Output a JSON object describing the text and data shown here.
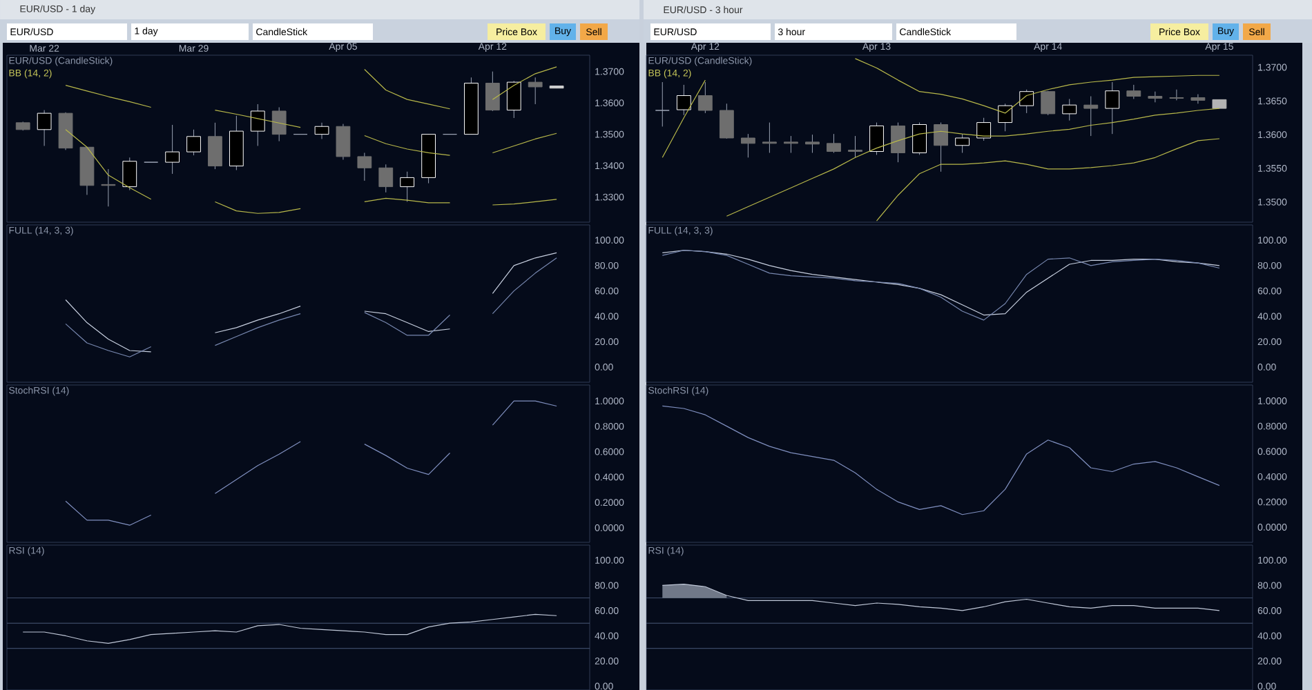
{
  "chart_data": [
    {
      "type": "candlestick",
      "title": "EUR/USD (CandleStick)",
      "subtitle": "BB (14, 2)",
      "annotations": [
        "EUR/USD - 1 day",
        "EUR/USD",
        "1 day",
        "CandleStick",
        "Price Box",
        "Buy",
        "Sell"
      ],
      "categories": [
        null,
        "Mar 22",
        null,
        null,
        null,
        null,
        null,
        null,
        "Mar 29",
        null,
        null,
        null,
        null,
        null,
        null,
        "Apr 05",
        null,
        null,
        null,
        null,
        null,
        null,
        "Apr 12",
        null,
        null,
        null
      ],
      "ohlc": [
        [
          1.3537,
          1.354,
          1.3512,
          1.3515
        ],
        [
          1.3515,
          1.3577,
          1.3463,
          1.3567
        ],
        [
          1.3567,
          1.357,
          1.345,
          1.3456
        ],
        [
          1.3459,
          1.346,
          1.3307,
          1.3337
        ],
        [
          1.334,
          1.3389,
          1.327,
          1.3337
        ],
        [
          1.3333,
          1.3426,
          1.3322,
          1.3414
        ],
        [
          1.3411,
          1.3411,
          1.3411,
          1.3411
        ],
        [
          1.3411,
          1.353,
          1.3374,
          1.3444
        ],
        [
          1.3444,
          1.3515,
          1.3433,
          1.3493
        ],
        [
          1.3493,
          1.3537,
          1.3389,
          1.3399
        ],
        [
          1.3399,
          1.3559,
          1.3386,
          1.351
        ],
        [
          1.351,
          1.3596,
          1.3463,
          1.3574
        ],
        [
          1.3574,
          1.3586,
          1.3478,
          1.35
        ],
        [
          1.35,
          1.35,
          1.35,
          1.35
        ],
        [
          1.35,
          1.3537,
          1.3485,
          1.3525
        ],
        [
          1.3525,
          1.3533,
          1.3419,
          1.3429
        ],
        [
          1.3429,
          1.3441,
          1.3352,
          1.3393
        ],
        [
          1.3393,
          1.3404,
          1.3315,
          1.3333
        ],
        [
          1.3333,
          1.3381,
          1.3285,
          1.3362
        ],
        [
          1.3362,
          1.35,
          1.3344,
          1.35
        ],
        [
          1.35,
          1.35,
          1.35,
          1.35
        ],
        [
          1.35,
          1.3681,
          1.35,
          1.3663
        ],
        [
          1.3663,
          1.37,
          1.3574,
          1.3577
        ],
        [
          1.3577,
          1.367,
          1.3552,
          1.3666
        ],
        [
          1.3666,
          1.3681,
          1.3596,
          1.3651
        ],
        [
          1.3654,
          1.3654,
          1.3647,
          1.3647
        ]
      ],
      "colors": [
        "#6e6e6e",
        "#000000",
        "#6e6e6e",
        "#6e6e6e",
        "#6e6e6e",
        "#000000",
        "#a0a8b8",
        "#000000",
        "#000000",
        "#6e6e6e",
        "#000000",
        "#000000",
        "#6e6e6e",
        "#a0a8b8",
        "#000000",
        "#6e6e6e",
        "#6e6e6e",
        "#6e6e6e",
        "#000000",
        "#000000",
        "#a0a8b8",
        "#000000",
        "#6e6e6e",
        "#000000",
        "#6e6e6e",
        "#d0d0d0"
      ],
      "series": [
        {
          "type": "line",
          "color": "#b8b84a",
          "values": [
            null,
            null,
            1.3656,
            1.3638,
            1.362,
            1.3604,
            1.3586,
            null,
            null,
            null,
            null,
            null,
            null,
            null,
            null,
            null,
            1.3707,
            1.3641,
            1.3611,
            1.3596,
            1.3581,
            null,
            1.3611,
            1.3656,
            1.3693,
            1.3715
          ]
        },
        {
          "type": "line",
          "color": "#b8b84a",
          "values": [
            null,
            null,
            1.3515,
            1.3459,
            1.337,
            1.333,
            1.3293,
            null,
            null,
            1.3577,
            1.3564,
            1.355,
            1.3536,
            1.3522,
            null,
            null,
            1.3496,
            1.347,
            1.3453,
            1.3441,
            1.3433,
            null,
            1.3441,
            1.3463,
            1.3485,
            1.3503
          ]
        },
        {
          "type": "line",
          "color": "#b8b84a",
          "values": [
            null,
            null,
            null,
            null,
            null,
            null,
            null,
            null,
            null,
            1.3285,
            1.3256,
            1.3248,
            1.3251,
            1.3263,
            null,
            null,
            1.3285,
            1.3296,
            1.329,
            1.3282,
            1.3282,
            null,
            1.3275,
            1.3278,
            1.3285,
            1.3293
          ]
        }
      ],
      "ylim": [
        1.322,
        1.3752
      ],
      "yticks": [
        {
          "value": 1.33,
          "label": "1.3300"
        },
        {
          "value": 1.34,
          "label": "1.3400"
        },
        {
          "value": 1.35,
          "label": "1.3500"
        },
        {
          "value": 1.36,
          "label": "1.3600"
        },
        {
          "value": 1.37,
          "label": "1.3700"
        }
      ]
    },
    {
      "type": "line",
      "title": "FULL (14, 3, 3)",
      "tick_labels": "y",
      "categories": [
        null,
        null,
        null,
        null,
        null,
        null,
        null,
        null,
        null,
        null,
        null,
        null,
        null,
        null,
        null,
        null,
        null,
        null,
        null,
        null,
        null,
        null,
        null,
        null,
        null,
        null
      ],
      "series": [
        {
          "color": "#c8d0e0",
          "values": [
            null,
            null,
            53,
            35,
            22,
            13,
            12,
            null,
            null,
            27,
            31,
            37,
            42,
            48,
            null,
            null,
            44,
            42,
            35,
            28,
            30,
            null,
            58,
            80,
            86,
            90
          ]
        },
        {
          "color": "#7888b0",
          "values": [
            null,
            null,
            34,
            19,
            13,
            8,
            16,
            null,
            null,
            17,
            24,
            31,
            37,
            42,
            null,
            null,
            43,
            35,
            25,
            25,
            41,
            null,
            42,
            60,
            74,
            86
          ]
        }
      ],
      "ylim": [
        -12,
        112
      ],
      "yticks": [
        {
          "value": 0,
          "label": "0.00"
        },
        {
          "value": 20,
          "label": "20.00"
        },
        {
          "value": 40,
          "label": "40.00"
        },
        {
          "value": 60,
          "label": "60.00"
        },
        {
          "value": 80,
          "label": "80.00"
        },
        {
          "value": 100,
          "label": "100.00"
        }
      ]
    },
    {
      "type": "line",
      "title": "StochRSI (14)",
      "tick_labels": "y",
      "categories": [
        null,
        null,
        null,
        null,
        null,
        null,
        null,
        null,
        null,
        null,
        null,
        null,
        null,
        null,
        null,
        null,
        null,
        null,
        null,
        null,
        null,
        null,
        null,
        null,
        null,
        null
      ],
      "series": [
        {
          "color": "#8090c0",
          "values": [
            null,
            null,
            0.21,
            0.06,
            0.06,
            0.02,
            0.1,
            null,
            null,
            0.27,
            0.38,
            0.49,
            0.58,
            0.68,
            null,
            null,
            0.66,
            0.57,
            0.47,
            0.42,
            0.59,
            null,
            0.81,
            1.0,
            1.0,
            0.96
          ]
        }
      ],
      "ylim": [
        -0.115,
        1.126
      ],
      "yticks": [
        {
          "value": 0,
          "label": "0.0000"
        },
        {
          "value": 0.2,
          "label": "0.2000"
        },
        {
          "value": 0.4,
          "label": "0.4000"
        },
        {
          "value": 0.6,
          "label": "0.6000"
        },
        {
          "value": 0.8,
          "label": "0.8000"
        },
        {
          "value": 1,
          "label": "1.0000"
        }
      ]
    },
    {
      "type": "line",
      "title": "RSI (14)",
      "tick_labels": "y",
      "categories": [
        null,
        null,
        null,
        null,
        null,
        null,
        null,
        null,
        null,
        null,
        null,
        null,
        null,
        null,
        null,
        null,
        null,
        null,
        null,
        null,
        null,
        null,
        null,
        null,
        null,
        null
      ],
      "series": [
        {
          "color": "#c0c8d8",
          "values": [
            43,
            43,
            40,
            36,
            34,
            37,
            41,
            42,
            43,
            44,
            43,
            48,
            49,
            46,
            45,
            44,
            43,
            41,
            41,
            47,
            50,
            51,
            53,
            55,
            57,
            56
          ]
        }
      ],
      "ref_lines": [
        {
          "axis": "y",
          "value": 30,
          "color": "#4a5a7a"
        },
        {
          "axis": "y",
          "value": 50,
          "color": "#4a5a7a"
        },
        {
          "axis": "y",
          "value": 70,
          "color": "#4a5a7a"
        }
      ],
      "ylim": [
        -3,
        112
      ],
      "yticks": [
        {
          "value": 0,
          "label": "0.00"
        },
        {
          "value": 20,
          "label": "20.00"
        },
        {
          "value": 40,
          "label": "40.00"
        },
        {
          "value": 60,
          "label": "60.00"
        },
        {
          "value": 80,
          "label": "80.00"
        },
        {
          "value": 100,
          "label": "100.00"
        }
      ]
    },
    {
      "type": "candlestick",
      "title": "EUR/USD (CandleStick)",
      "subtitle": "BB (14, 2)",
      "annotations": [
        "EUR/USD - 3 hour",
        "EUR/USD",
        "3 hour",
        "CandleStick",
        "Price Box",
        "Buy",
        "Sell"
      ],
      "categories": [
        null,
        null,
        "Apr 12",
        null,
        null,
        null,
        null,
        null,
        null,
        null,
        "Apr 13",
        null,
        null,
        null,
        null,
        null,
        null,
        null,
        "Apr 14",
        null,
        null,
        null,
        null,
        null,
        null,
        null,
        "Apr 15"
      ],
      "ohlc": [
        [
          1.3636,
          1.3678,
          1.3612,
          1.3636
        ],
        [
          1.3637,
          1.3674,
          1.3629,
          1.3658
        ],
        [
          1.3658,
          1.3678,
          1.3632,
          1.3636
        ],
        [
          1.3636,
          1.3646,
          1.3594,
          1.3595
        ],
        [
          1.3595,
          1.3601,
          1.3566,
          1.3587
        ],
        [
          1.3589,
          1.3618,
          1.3573,
          1.3587
        ],
        [
          1.3589,
          1.3598,
          1.3573,
          1.3587
        ],
        [
          1.3589,
          1.36,
          1.3573,
          1.3586
        ],
        [
          1.3587,
          1.3601,
          1.3573,
          1.3575
        ],
        [
          1.3577,
          1.3598,
          1.3566,
          1.3575
        ],
        [
          1.3575,
          1.3618,
          1.357,
          1.3613
        ],
        [
          1.3613,
          1.3618,
          1.3559,
          1.3573
        ],
        [
          1.3573,
          1.3618,
          1.357,
          1.3615
        ],
        [
          1.3615,
          1.3618,
          1.3545,
          1.3584
        ],
        [
          1.3584,
          1.3601,
          1.3573,
          1.3595
        ],
        [
          1.3595,
          1.3625,
          1.3591,
          1.3618
        ],
        [
          1.3618,
          1.3646,
          1.3605,
          1.3643
        ],
        [
          1.3643,
          1.3667,
          1.3632,
          1.3664
        ],
        [
          1.3664,
          1.3665,
          1.3629,
          1.3631
        ],
        [
          1.3631,
          1.3653,
          1.3621,
          1.3644
        ],
        [
          1.3644,
          1.3657,
          1.3598,
          1.3639
        ],
        [
          1.3639,
          1.3678,
          1.3601,
          1.3665
        ],
        [
          1.3665,
          1.3674,
          1.3653,
          1.3657
        ],
        [
          1.3657,
          1.3664,
          1.3648,
          1.3654
        ],
        [
          1.3655,
          1.3667,
          1.3651,
          1.3654
        ],
        [
          1.3655,
          1.366,
          1.3646,
          1.3651
        ],
        [
          1.3652,
          1.3652,
          1.3639,
          1.3639
        ]
      ],
      "colors": [
        "#a0a8b8",
        "#000000",
        "#6e6e6e",
        "#6e6e6e",
        "#6e6e6e",
        "#6e6e6e",
        "#6e6e6e",
        "#6e6e6e",
        "#6e6e6e",
        "#6e6e6e",
        "#000000",
        "#6e6e6e",
        "#000000",
        "#6e6e6e",
        "#000000",
        "#000000",
        "#000000",
        "#000000",
        "#6e6e6e",
        "#000000",
        "#6e6e6e",
        "#000000",
        "#6e6e6e",
        "#6e6e6e",
        "#6e6e6e",
        "#6e6e6e",
        "#b4b4b4"
      ],
      "series": [
        {
          "type": "line",
          "color": "#b8b84a",
          "values": [
            1.3566,
            1.3625,
            1.3681,
            null,
            null,
            null,
            null,
            null,
            null,
            1.3713,
            1.3699,
            1.3681,
            1.3664,
            1.366,
            1.3653,
            1.3643,
            1.3632,
            1.3658,
            1.3667,
            1.3674,
            1.3678,
            1.3681,
            1.3685,
            1.3686,
            1.3687,
            1.3688,
            1.3688
          ]
        },
        {
          "type": "line",
          "color": "#b8b84a",
          "values": [
            null,
            null,
            null,
            1.3479,
            1.3493,
            1.3507,
            1.3521,
            1.3535,
            1.3549,
            1.3566,
            1.358,
            1.3591,
            1.3601,
            1.3605,
            1.3601,
            1.3598,
            1.3598,
            1.3601,
            1.3605,
            1.3608,
            1.3614,
            1.3618,
            1.3623,
            1.3629,
            1.3632,
            1.3636,
            1.3639
          ]
        },
        {
          "type": "line",
          "color": "#b8b84a",
          "values": [
            null,
            null,
            null,
            null,
            null,
            null,
            null,
            null,
            null,
            null,
            1.3472,
            1.351,
            1.3542,
            1.3556,
            1.3556,
            1.3558,
            1.3561,
            1.3556,
            1.3549,
            1.3549,
            1.3551,
            1.3554,
            1.3558,
            1.3566,
            1.3579,
            1.3591,
            1.3594
          ]
        }
      ],
      "ylim": [
        1.347,
        1.3718
      ],
      "yticks": [
        {
          "value": 1.35,
          "label": "1.3500"
        },
        {
          "value": 1.355,
          "label": "1.3550"
        },
        {
          "value": 1.36,
          "label": "1.3600"
        },
        {
          "value": 1.365,
          "label": "1.3650"
        },
        {
          "value": 1.37,
          "label": "1.3700"
        }
      ]
    },
    {
      "type": "line",
      "title": "FULL (14, 3, 3)",
      "tick_labels": "y",
      "categories": [
        null,
        null,
        null,
        null,
        null,
        null,
        null,
        null,
        null,
        null,
        null,
        null,
        null,
        null,
        null,
        null,
        null,
        null,
        null,
        null,
        null,
        null,
        null,
        null,
        null,
        null,
        null
      ],
      "series": [
        {
          "color": "#c8d0e0",
          "values": [
            90,
            92,
            91,
            89,
            85,
            80,
            76,
            73,
            71,
            69,
            67,
            65,
            62,
            57,
            49,
            41,
            42,
            59,
            70,
            81,
            84,
            84,
            85,
            85,
            83,
            82,
            80
          ]
        },
        {
          "color": "#7888b0",
          "values": [
            88,
            92,
            91,
            88,
            81,
            74,
            72,
            71,
            70,
            68,
            67,
            66,
            62,
            55,
            44,
            37,
            50,
            73,
            85,
            86,
            80,
            83,
            84,
            85,
            84,
            82,
            78
          ]
        }
      ],
      "ylim": [
        -12,
        112
      ],
      "yticks": [
        {
          "value": 0,
          "label": "0.00"
        },
        {
          "value": 20,
          "label": "20.00"
        },
        {
          "value": 40,
          "label": "40.00"
        },
        {
          "value": 60,
          "label": "60.00"
        },
        {
          "value": 80,
          "label": "80.00"
        },
        {
          "value": 100,
          "label": "100.00"
        }
      ]
    },
    {
      "type": "line",
      "title": "StochRSI (14)",
      "tick_labels": "y",
      "categories": [
        null,
        null,
        null,
        null,
        null,
        null,
        null,
        null,
        null,
        null,
        null,
        null,
        null,
        null,
        null,
        null,
        null,
        null,
        null,
        null,
        null,
        null,
        null,
        null,
        null,
        null,
        null
      ],
      "series": [
        {
          "color": "#8090c0",
          "values": [
            0.96,
            0.94,
            0.89,
            0.8,
            0.71,
            0.64,
            0.59,
            0.56,
            0.53,
            0.43,
            0.3,
            0.2,
            0.14,
            0.17,
            0.1,
            0.13,
            0.3,
            0.58,
            0.69,
            0.63,
            0.47,
            0.44,
            0.5,
            0.52,
            0.47,
            0.4,
            0.33
          ]
        }
      ],
      "ylim": [
        -0.12,
        1.126
      ],
      "yticks": [
        {
          "value": 0,
          "label": "0.0000"
        },
        {
          "value": 0.2,
          "label": "0.2000"
        },
        {
          "value": 0.4,
          "label": "0.4000"
        },
        {
          "value": 0.6,
          "label": "0.6000"
        },
        {
          "value": 0.8,
          "label": "0.8000"
        },
        {
          "value": 1,
          "label": "1.0000"
        }
      ]
    },
    {
      "type": "line",
      "title": "RSI (14)",
      "tick_labels": "y",
      "categories": [
        null,
        null,
        null,
        null,
        null,
        null,
        null,
        null,
        null,
        null,
        null,
        null,
        null,
        null,
        null,
        null,
        null,
        null,
        null,
        null,
        null,
        null,
        null,
        null,
        null,
        null,
        null
      ],
      "series": [
        {
          "color": "#c0c8d8",
          "values": [
            80,
            81,
            79,
            72,
            68,
            68,
            68,
            68,
            66,
            64,
            66,
            65,
            63,
            62,
            60,
            63,
            67,
            69,
            66,
            63,
            62,
            64,
            64,
            62,
            62,
            62,
            60
          ],
          "lower": [
            70,
            70,
            70,
            70,
            null,
            null,
            null,
            null,
            null,
            null,
            null,
            null,
            null,
            null,
            null,
            null,
            null,
            null,
            null,
            null,
            null,
            null,
            null,
            null,
            null,
            null,
            null
          ],
          "upper": [
            80,
            81,
            79,
            72,
            null,
            null,
            null,
            null,
            null,
            null,
            null,
            null,
            null,
            null,
            null,
            null,
            null,
            null,
            null,
            null,
            null,
            null,
            null,
            null,
            null,
            null,
            null
          ]
        }
      ],
      "ref_lines": [
        {
          "axis": "y",
          "value": 30,
          "color": "#4a5a7a"
        },
        {
          "axis": "y",
          "value": 50,
          "color": "#4a5a7a"
        },
        {
          "axis": "y",
          "value": 70,
          "color": "#4a5a7a"
        }
      ],
      "ylim": [
        -3,
        112
      ],
      "yticks": [
        {
          "value": 0,
          "label": "0.00"
        },
        {
          "value": 20,
          "label": "20.00"
        },
        {
          "value": 40,
          "label": "40.00"
        },
        {
          "value": 60,
          "label": "60.00"
        },
        {
          "value": 80,
          "label": "80.00"
        },
        {
          "value": 100,
          "label": "100.00"
        }
      ]
    }
  ]
}
